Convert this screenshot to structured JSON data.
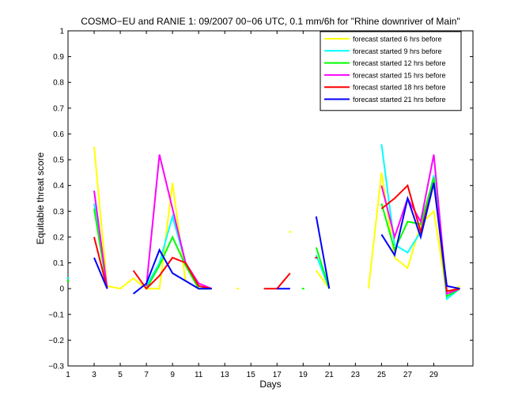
{
  "chart_data": {
    "type": "line",
    "title": "COSMO−EU and RANIE 1: 09/2007 00−06 UTC, 0.1 mm/6h for \"Rhine downriver of Main\"",
    "xlabel": "Days",
    "ylabel": "Equitable threat score",
    "xlim": [
      1,
      32
    ],
    "ylim": [
      -0.3,
      1
    ],
    "xticks": [
      1,
      3,
      5,
      7,
      9,
      11,
      13,
      15,
      17,
      19,
      21,
      23,
      25,
      27,
      29
    ],
    "yticks": [
      -0.3,
      -0.2,
      -0.1,
      0,
      0.1,
      0.2,
      0.3,
      0.4,
      0.5,
      0.6,
      0.7,
      0.8,
      0.9,
      1
    ],
    "ytick_labels": [
      "−0.3",
      "−0.2",
      "−0.1",
      "0",
      "0.1",
      "0.2",
      "0.3",
      "0.4",
      "0.5",
      "0.6",
      "0.7",
      "0.8",
      "0.9",
      "1"
    ],
    "legend_position": "top-right",
    "series": [
      {
        "name": "forecast started 6 hrs before",
        "color": "#ffff00",
        "segments": [
          [
            [
              1,
              0.04
            ],
            [
              2,
              null
            ]
          ],
          [
            [
              3,
              0.55
            ],
            [
              4,
              0.01
            ],
            [
              5,
              0
            ],
            [
              6,
              0.04
            ],
            [
              7,
              0
            ],
            [
              8,
              0
            ],
            [
              9,
              0.41
            ],
            [
              10,
              0.03
            ],
            [
              11,
              0
            ],
            [
              12,
              0
            ]
          ],
          [
            [
              14,
              0
            ]
          ],
          [
            [
              18,
              0.22
            ]
          ],
          [
            [
              20,
              0.07
            ],
            [
              21,
              0
            ]
          ],
          [
            [
              24,
              0
            ],
            [
              25,
              0.45
            ],
            [
              26,
              0.12
            ],
            [
              27,
              0.08
            ],
            [
              28,
              0.25
            ],
            [
              29,
              0.3
            ],
            [
              30,
              -0.02
            ],
            [
              31,
              0.01
            ]
          ]
        ]
      },
      {
        "name": "forecast started 9 hrs before",
        "color": "#00ffff",
        "segments": [
          [
            [
              1,
              0.04
            ]
          ],
          [
            [
              3,
              0.33
            ],
            [
              4,
              0.01
            ]
          ],
          [
            [
              7,
              0.01
            ],
            [
              8,
              0.1
            ],
            [
              9,
              0.28
            ],
            [
              10,
              0.1
            ],
            [
              11,
              0.01
            ],
            [
              12,
              0
            ]
          ],
          [
            [
              20,
              0.13
            ],
            [
              21,
              0
            ]
          ],
          [
            [
              25,
              0.56
            ],
            [
              26,
              0.17
            ],
            [
              27,
              0.14
            ],
            [
              28,
              0.22
            ],
            [
              29,
              0.44
            ],
            [
              30,
              -0.04
            ],
            [
              31,
              0
            ]
          ]
        ]
      },
      {
        "name": "forecast started 12 hrs before",
        "color": "#00ff00",
        "segments": [
          [
            [
              1,
              0.03
            ]
          ],
          [
            [
              3,
              0.31
            ],
            [
              4,
              0
            ]
          ],
          [
            [
              7,
              0
            ],
            [
              8,
              0.09
            ],
            [
              9,
              0.2
            ],
            [
              10,
              0.09
            ],
            [
              11,
              0
            ],
            [
              12,
              0
            ]
          ],
          [
            [
              19,
              0
            ]
          ],
          [
            [
              20,
              0.16
            ],
            [
              21,
              0
            ]
          ],
          [
            [
              25,
              0.33
            ],
            [
              26,
              0.15
            ],
            [
              27,
              0.26
            ],
            [
              28,
              0.25
            ],
            [
              29,
              0.43
            ],
            [
              30,
              -0.03
            ],
            [
              31,
              0
            ]
          ]
        ]
      },
      {
        "name": "forecast started 15 hrs before",
        "color": "#ff00ff",
        "segments": [
          [
            [
              3,
              0.38
            ],
            [
              4,
              0
            ]
          ],
          [
            [
              7,
              0.01
            ],
            [
              8,
              0.52
            ],
            [
              9,
              0.31
            ],
            [
              10,
              0.1
            ],
            [
              11,
              0.02
            ],
            [
              12,
              0
            ]
          ],
          [
            [
              25,
              0.4
            ],
            [
              26,
              0.2
            ],
            [
              27,
              0.35
            ],
            [
              28,
              0.26
            ],
            [
              29,
              0.52
            ],
            [
              30,
              -0.02
            ],
            [
              31,
              0
            ]
          ]
        ]
      },
      {
        "name": "forecast started 18 hrs before",
        "color": "#ff0000",
        "segments": [
          [
            [
              3,
              0.2
            ],
            [
              4,
              0
            ]
          ],
          [
            [
              6,
              0.07
            ],
            [
              7,
              0
            ],
            [
              8,
              0.05
            ],
            [
              9,
              0.12
            ],
            [
              10,
              0.1
            ],
            [
              11,
              0.01
            ],
            [
              12,
              0
            ]
          ],
          [
            [
              16,
              0
            ],
            [
              17,
              0
            ],
            [
              18,
              0.06
            ]
          ],
          [
            [
              20,
              0.12
            ]
          ],
          [
            [
              25,
              0.31
            ],
            [
              26,
              0.35
            ],
            [
              27,
              0.4
            ],
            [
              28,
              0.22
            ],
            [
              29,
              0.41
            ],
            [
              30,
              -0.01
            ],
            [
              31,
              0
            ]
          ]
        ]
      },
      {
        "name": "forecast started 21 hrs before",
        "color": "#0000ff",
        "segments": [
          [
            [
              3,
              0.12
            ],
            [
              4,
              0
            ]
          ],
          [
            [
              6,
              -0.02
            ],
            [
              7,
              0.02
            ],
            [
              8,
              0.15
            ],
            [
              9,
              0.06
            ],
            [
              10,
              0.03
            ],
            [
              11,
              0
            ],
            [
              12,
              0
            ]
          ],
          [
            [
              17,
              0
            ],
            [
              18,
              0
            ]
          ],
          [
            [
              20,
              0.28
            ],
            [
              21,
              0
            ]
          ],
          [
            [
              25,
              0.21
            ],
            [
              26,
              0.13
            ],
            [
              27,
              0.35
            ],
            [
              28,
              0.2
            ],
            [
              29,
              0.41
            ],
            [
              30,
              0.01
            ],
            [
              31,
              0
            ]
          ]
        ]
      }
    ]
  }
}
